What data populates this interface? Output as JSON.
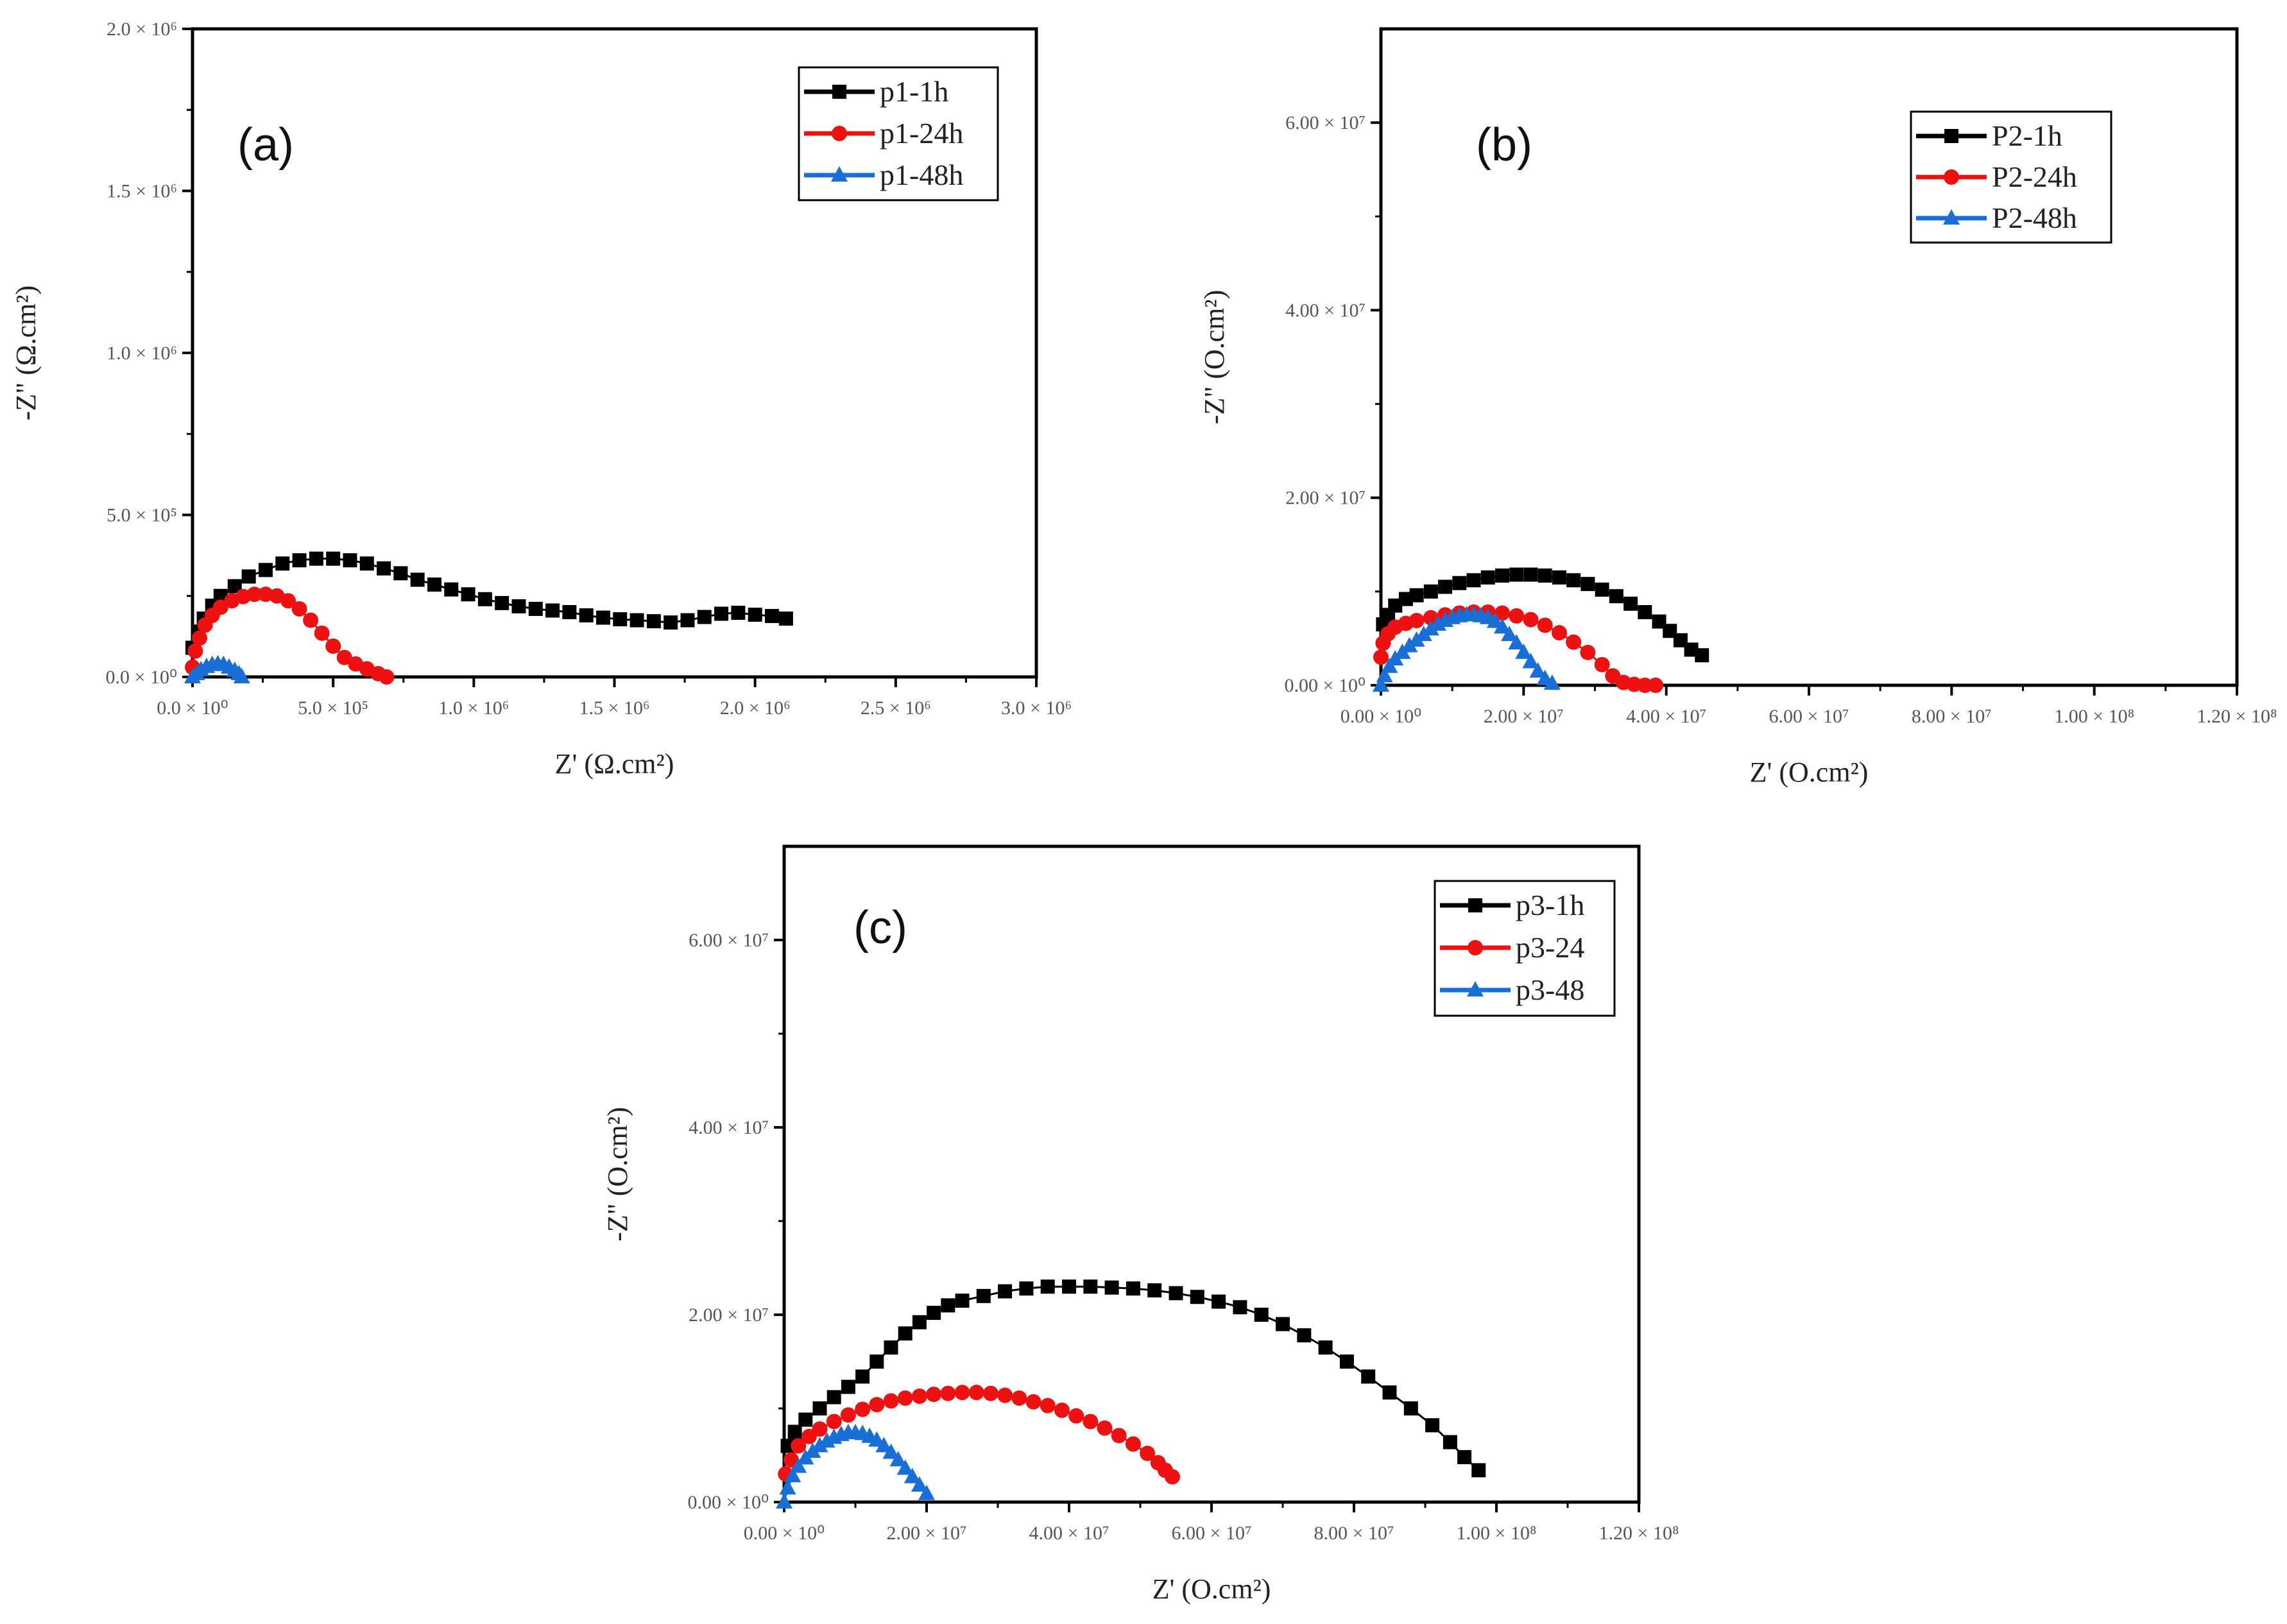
{
  "chart_data": [
    {
      "type": "scatter",
      "panel_label": "(a)",
      "xlabel": "Z' (Ω.cm²)",
      "ylabel": "-Z\" (Ω.cm²)",
      "xlim": [
        0,
        3000000
      ],
      "ylim": [
        0,
        2000000
      ],
      "xticks": [
        0,
        500000,
        1000000,
        1500000,
        2000000,
        2500000,
        3000000
      ],
      "xtick_labels": [
        "0.0 × 10⁰",
        "5.0 × 10⁵",
        "1.0 × 10⁶",
        "1.5 × 10⁶",
        "2.0 × 10⁶",
        "2.5 × 10⁶",
        "3.0 × 10⁶"
      ],
      "yticks": [
        0,
        500000,
        1000000,
        1500000,
        2000000
      ],
      "ytick_labels": [
        "0.0 × 10⁰",
        "5.0 × 10⁵",
        "1.0 × 10⁶",
        "1.5 × 10⁶",
        "2.0 × 10⁶"
      ],
      "legend_position": "top-right",
      "series": [
        {
          "name": "p1-1h",
          "color": "#000000",
          "marker": "square",
          "x": [
            0,
            20000,
            40000,
            70000,
            100000,
            150000,
            200000,
            260000,
            320000,
            380000,
            440000,
            500000,
            560000,
            620000,
            680000,
            740000,
            800000,
            860000,
            920000,
            980000,
            1040000,
            1100000,
            1160000,
            1220000,
            1280000,
            1340000,
            1400000,
            1460000,
            1520000,
            1580000,
            1640000,
            1700000,
            1760000,
            1820000,
            1880000,
            1940000,
            2000000,
            2060000,
            2110000
          ],
          "y": [
            90000,
            140000,
            180000,
            220000,
            250000,
            280000,
            310000,
            330000,
            350000,
            360000,
            365000,
            365000,
            360000,
            350000,
            335000,
            320000,
            300000,
            285000,
            270000,
            255000,
            240000,
            228000,
            218000,
            210000,
            205000,
            200000,
            190000,
            183000,
            178000,
            175000,
            172000,
            168000,
            175000,
            185000,
            195000,
            198000,
            192000,
            188000,
            180000
          ]
        },
        {
          "name": "p1-24h",
          "color": "#ee1111",
          "marker": "circle",
          "x": [
            0,
            10000,
            25000,
            45000,
            70000,
            100000,
            140000,
            180000,
            220000,
            260000,
            300000,
            340000,
            380000,
            420000,
            460000,
            500000,
            540000,
            580000,
            620000,
            660000,
            690000
          ],
          "y": [
            30000,
            80000,
            120000,
            160000,
            190000,
            215000,
            235000,
            248000,
            255000,
            255000,
            250000,
            235000,
            210000,
            175000,
            135000,
            95000,
            60000,
            40000,
            25000,
            10000,
            0
          ]
        },
        {
          "name": "p1-48h",
          "color": "#1a6fd6",
          "marker": "triangle",
          "x": [
            0,
            15000,
            30000,
            50000,
            70000,
            90000,
            110000,
            130000,
            150000,
            165000,
            175000
          ],
          "y": [
            0,
            10000,
            22000,
            32000,
            38000,
            40000,
            38000,
            30000,
            20000,
            10000,
            0
          ]
        }
      ]
    },
    {
      "type": "scatter",
      "panel_label": "(b)",
      "xlabel": "Z' (O.cm²)",
      "ylabel": "-Z\" (O.cm²)",
      "xlim": [
        0,
        120000000
      ],
      "ylim": [
        0,
        70000000
      ],
      "xticks": [
        0,
        20000000,
        40000000,
        60000000,
        80000000,
        100000000,
        120000000
      ],
      "xtick_labels": [
        "0.00 × 10⁰",
        "2.00 × 10⁷",
        "4.00 × 10⁷",
        "6.00 × 10⁷",
        "8.00 × 10⁷",
        "1.00 × 10⁸",
        "1.20 × 10⁸"
      ],
      "yticks": [
        0,
        20000000,
        40000000,
        60000000
      ],
      "ytick_labels": [
        "0.00 × 10⁰",
        "2.00 × 10⁷",
        "4.00 × 10⁷",
        "6.00 × 10⁷"
      ],
      "legend_position": "top-right",
      "series": [
        {
          "name": "P2-1h",
          "color": "#000000",
          "marker": "square",
          "x": [
            300000,
            1000000,
            2000000,
            3500000,
            5000000,
            7000000,
            9000000,
            11000000,
            13000000,
            15000000,
            17000000,
            19000000,
            21000000,
            23000000,
            25000000,
            27000000,
            29000000,
            31000000,
            33000000,
            35000000,
            37000000,
            39000000,
            40500000,
            42000000,
            43500000,
            45000000
          ],
          "y": [
            6500000,
            7500000,
            8500000,
            9200000,
            9600000,
            10000000,
            10500000,
            10900000,
            11200000,
            11500000,
            11700000,
            11800000,
            11800000,
            11700000,
            11500000,
            11200000,
            10800000,
            10200000,
            9500000,
            8700000,
            7800000,
            6800000,
            5800000,
            4800000,
            3800000,
            3200000
          ]
        },
        {
          "name": "P2-24h",
          "color": "#ee1111",
          "marker": "circle",
          "x": [
            0,
            300000,
            1000000,
            2000000,
            3500000,
            5000000,
            7000000,
            9000000,
            11000000,
            13000000,
            15000000,
            17000000,
            19000000,
            21000000,
            23000000,
            25000000,
            27000000,
            29000000,
            31000000,
            32500000,
            34000000,
            35500000,
            37000000,
            38500000
          ],
          "y": [
            3000000,
            4500000,
            5500000,
            6200000,
            6600000,
            6900000,
            7200000,
            7500000,
            7700000,
            7800000,
            7800000,
            7700000,
            7400000,
            7000000,
            6400000,
            5600000,
            4600000,
            3500000,
            2200000,
            1000000,
            300000,
            100000,
            0,
            0
          ]
        },
        {
          "name": "P2-48h",
          "color": "#1a6fd6",
          "marker": "triangle",
          "x": [
            0,
            500000,
            1200000,
            2000000,
            3000000,
            4000000,
            5000000,
            6000000,
            7000000,
            8000000,
            9000000,
            10000000,
            11000000,
            12000000,
            13000000,
            14000000,
            15000000,
            16000000,
            17000000,
            18000000,
            19000000,
            20000000,
            21000000,
            22000000,
            23000000,
            24000000
          ],
          "y": [
            0,
            1000000,
            2000000,
            2800000,
            3500000,
            4200000,
            4800000,
            5400000,
            6000000,
            6500000,
            6900000,
            7200000,
            7400000,
            7500000,
            7500000,
            7400000,
            7200000,
            6800000,
            6200000,
            5400000,
            4500000,
            3500000,
            2500000,
            1500000,
            700000,
            200000
          ]
        }
      ]
    },
    {
      "type": "scatter",
      "panel_label": "(c)",
      "xlabel": "Z' (O.cm²)",
      "ylabel": "-Z\" (O.cm²)",
      "xlim": [
        0,
        120000000
      ],
      "ylim": [
        0,
        70000000
      ],
      "xticks": [
        0,
        20000000,
        40000000,
        60000000,
        80000000,
        100000000,
        120000000
      ],
      "xtick_labels": [
        "0.00 × 10⁰",
        "2.00 × 10⁷",
        "4.00 × 10⁷",
        "6.00 × 10⁷",
        "8.00 × 10⁷",
        "1.00 × 10⁸",
        "1.20 × 10⁸"
      ],
      "yticks": [
        0,
        20000000,
        40000000,
        60000000
      ],
      "ytick_labels": [
        "0.00 × 10⁰",
        "2.00 × 10⁷",
        "4.00 × 10⁷",
        "6.00 × 10⁷"
      ],
      "legend_position": "top-right",
      "series": [
        {
          "name": "p3-1h",
          "color": "#000000",
          "marker": "square",
          "x": [
            500000,
            1500000,
            3000000,
            5000000,
            7000000,
            9000000,
            11000000,
            13000000,
            15000000,
            17000000,
            19000000,
            21000000,
            23000000,
            25000000,
            28000000,
            31000000,
            34000000,
            37000000,
            40000000,
            43000000,
            46000000,
            49000000,
            52000000,
            55000000,
            58000000,
            61000000,
            64000000,
            67000000,
            70000000,
            73000000,
            76000000,
            79000000,
            82000000,
            85000000,
            88000000,
            91000000,
            93500000,
            95500000,
            97500000
          ],
          "y": [
            6000000,
            7500000,
            8800000,
            10000000,
            11200000,
            12300000,
            13400000,
            15000000,
            16500000,
            18000000,
            19200000,
            20200000,
            21000000,
            21500000,
            22000000,
            22500000,
            22800000,
            23000000,
            23000000,
            23000000,
            22900000,
            22800000,
            22600000,
            22300000,
            21900000,
            21400000,
            20800000,
            20000000,
            19000000,
            17800000,
            16500000,
            15000000,
            13400000,
            11700000,
            10000000,
            8200000,
            6400000,
            4800000,
            3400000
          ]
        },
        {
          "name": "p3-24",
          "color": "#ee1111",
          "marker": "circle",
          "x": [
            200000,
            1000000,
            2000000,
            3500000,
            5000000,
            7000000,
            9000000,
            11000000,
            13000000,
            15000000,
            17000000,
            19000000,
            21000000,
            23000000,
            25000000,
            27000000,
            29000000,
            31000000,
            33000000,
            35000000,
            37000000,
            39000000,
            41000000,
            43000000,
            45000000,
            47000000,
            49000000,
            51000000,
            52500000,
            53500000,
            54500000
          ],
          "y": [
            3000000,
            4500000,
            6000000,
            7000000,
            7800000,
            8600000,
            9300000,
            9900000,
            10400000,
            10800000,
            11100000,
            11300000,
            11500000,
            11600000,
            11700000,
            11700000,
            11600000,
            11400000,
            11100000,
            10700000,
            10300000,
            9800000,
            9200000,
            8600000,
            7900000,
            7100000,
            6200000,
            5200000,
            4200000,
            3400000,
            2700000
          ]
        },
        {
          "name": "p3-48",
          "color": "#1a6fd6",
          "marker": "triangle",
          "x": [
            0,
            500000,
            1200000,
            2000000,
            3000000,
            4000000,
            5000000,
            6000000,
            7000000,
            8000000,
            9000000,
            10000000,
            11000000,
            12000000,
            13000000,
            14000000,
            15000000,
            16000000,
            17000000,
            18000000,
            19000000,
            20000000
          ],
          "y": [
            0,
            1500000,
            2800000,
            3800000,
            4700000,
            5400000,
            6000000,
            6500000,
            6900000,
            7200000,
            7400000,
            7400000,
            7300000,
            7000000,
            6600000,
            6000000,
            5300000,
            4500000,
            3600000,
            2700000,
            1800000,
            900000
          ]
        }
      ]
    }
  ]
}
